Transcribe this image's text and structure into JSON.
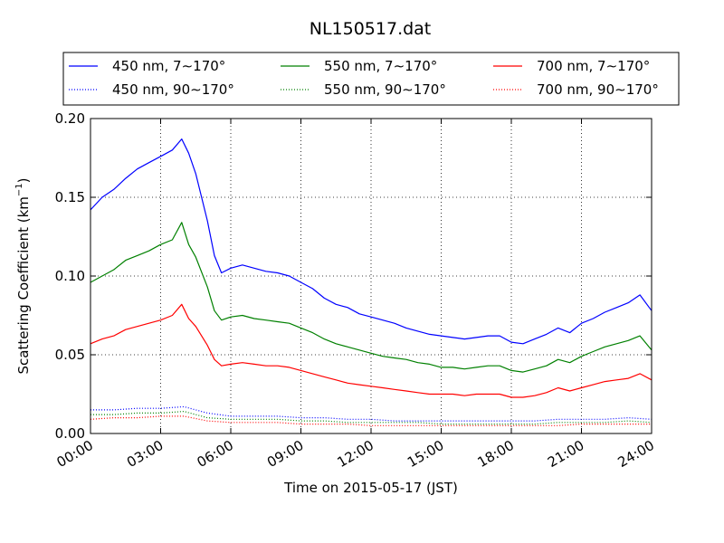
{
  "chart_data": {
    "type": "line",
    "title": "NL150517.dat",
    "xlabel": "Time on 2015-05-17 (JST)",
    "ylabel": "Scattering Coefficient (km",
    "ylabel_sup": "−1",
    "ylabel_end": ")",
    "x_unit": "hours",
    "xlim": [
      0,
      24
    ],
    "ylim": [
      0,
      0.2
    ],
    "x_ticks": [
      0,
      3,
      6,
      9,
      12,
      15,
      18,
      21,
      24
    ],
    "x_tick_labels": [
      "00:00",
      "03:00",
      "06:00",
      "09:00",
      "12:00",
      "15:00",
      "18:00",
      "21:00",
      "24:00"
    ],
    "y_ticks": [
      0,
      0.05,
      0.1,
      0.15,
      0.2
    ],
    "y_tick_labels": [
      "0.00",
      "0.05",
      "0.10",
      "0.15",
      "0.20"
    ],
    "grid": true,
    "legend_placement": "top, above plot, 3 columns",
    "series": [
      {
        "name": "450 nm, 7∼170°",
        "color": "#0000ff",
        "style": "solid",
        "x": [
          0,
          0.5,
          1,
          1.5,
          2,
          2.5,
          3,
          3.5,
          3.9,
          4.2,
          4.5,
          5,
          5.3,
          5.6,
          6,
          6.5,
          7,
          7.5,
          8,
          8.5,
          9,
          9.5,
          10,
          10.5,
          11,
          11.5,
          12,
          12.5,
          13,
          13.5,
          14,
          14.5,
          15,
          15.5,
          16,
          16.5,
          17,
          17.5,
          18,
          18.5,
          19,
          19.5,
          20,
          20.5,
          21,
          21.5,
          22,
          22.5,
          23,
          23.5,
          24
        ],
        "y": [
          0.142,
          0.15,
          0.155,
          0.162,
          0.168,
          0.172,
          0.176,
          0.18,
          0.187,
          0.178,
          0.165,
          0.135,
          0.113,
          0.102,
          0.105,
          0.107,
          0.105,
          0.103,
          0.102,
          0.1,
          0.096,
          0.092,
          0.086,
          0.082,
          0.08,
          0.076,
          0.074,
          0.072,
          0.07,
          0.067,
          0.065,
          0.063,
          0.062,
          0.061,
          0.06,
          0.061,
          0.062,
          0.062,
          0.058,
          0.057,
          0.06,
          0.063,
          0.067,
          0.064,
          0.07,
          0.073,
          0.077,
          0.08,
          0.083,
          0.088,
          0.078
        ]
      },
      {
        "name": "550 nm, 7∼170°",
        "color": "#008000",
        "style": "solid",
        "x": [
          0,
          0.5,
          1,
          1.5,
          2,
          2.5,
          3,
          3.5,
          3.9,
          4.2,
          4.5,
          5,
          5.3,
          5.6,
          6,
          6.5,
          7,
          7.5,
          8,
          8.5,
          9,
          9.5,
          10,
          10.5,
          11,
          11.5,
          12,
          12.5,
          13,
          13.5,
          14,
          14.5,
          15,
          15.5,
          16,
          16.5,
          17,
          17.5,
          18,
          18.5,
          19,
          19.5,
          20,
          20.5,
          21,
          21.5,
          22,
          22.5,
          23,
          23.5,
          24
        ],
        "y": [
          0.096,
          0.1,
          0.104,
          0.11,
          0.113,
          0.116,
          0.12,
          0.123,
          0.134,
          0.12,
          0.112,
          0.093,
          0.078,
          0.072,
          0.074,
          0.075,
          0.073,
          0.072,
          0.071,
          0.07,
          0.067,
          0.064,
          0.06,
          0.057,
          0.055,
          0.053,
          0.051,
          0.049,
          0.048,
          0.047,
          0.045,
          0.044,
          0.042,
          0.042,
          0.041,
          0.042,
          0.043,
          0.043,
          0.04,
          0.039,
          0.041,
          0.043,
          0.047,
          0.045,
          0.049,
          0.052,
          0.055,
          0.057,
          0.059,
          0.062,
          0.053
        ]
      },
      {
        "name": "700 nm, 7∼170°",
        "color": "#ff0000",
        "style": "solid",
        "x": [
          0,
          0.5,
          1,
          1.5,
          2,
          2.5,
          3,
          3.5,
          3.9,
          4.2,
          4.5,
          5,
          5.3,
          5.6,
          6,
          6.5,
          7,
          7.5,
          8,
          8.5,
          9,
          9.5,
          10,
          10.5,
          11,
          11.5,
          12,
          12.5,
          13,
          13.5,
          14,
          14.5,
          15,
          15.5,
          16,
          16.5,
          17,
          17.5,
          18,
          18.5,
          19,
          19.5,
          20,
          20.5,
          21,
          21.5,
          22,
          22.5,
          23,
          23.5,
          24
        ],
        "y": [
          0.057,
          0.06,
          0.062,
          0.066,
          0.068,
          0.07,
          0.072,
          0.075,
          0.082,
          0.073,
          0.068,
          0.056,
          0.047,
          0.043,
          0.044,
          0.045,
          0.044,
          0.043,
          0.043,
          0.042,
          0.04,
          0.038,
          0.036,
          0.034,
          0.032,
          0.031,
          0.03,
          0.029,
          0.028,
          0.027,
          0.026,
          0.025,
          0.025,
          0.025,
          0.024,
          0.025,
          0.025,
          0.025,
          0.023,
          0.023,
          0.024,
          0.026,
          0.029,
          0.027,
          0.029,
          0.031,
          0.033,
          0.034,
          0.035,
          0.038,
          0.034
        ]
      },
      {
        "name": "450 nm, 90∼170°",
        "color": "#0000ff",
        "style": "dotted",
        "x": [
          0,
          1,
          2,
          3,
          4,
          5,
          6,
          7,
          8,
          9,
          10,
          11,
          12,
          13,
          14,
          15,
          16,
          17,
          18,
          19,
          20,
          21,
          22,
          23,
          24
        ],
        "y": [
          0.015,
          0.015,
          0.016,
          0.016,
          0.017,
          0.013,
          0.011,
          0.011,
          0.011,
          0.01,
          0.01,
          0.009,
          0.009,
          0.008,
          0.008,
          0.008,
          0.008,
          0.008,
          0.008,
          0.008,
          0.009,
          0.009,
          0.009,
          0.01,
          0.009
        ]
      },
      {
        "name": "550 nm, 90∼170°",
        "color": "#008000",
        "style": "dotted",
        "x": [
          0,
          1,
          2,
          3,
          4,
          5,
          6,
          7,
          8,
          9,
          10,
          11,
          12,
          13,
          14,
          15,
          16,
          17,
          18,
          19,
          20,
          21,
          22,
          23,
          24
        ],
        "y": [
          0.012,
          0.012,
          0.013,
          0.013,
          0.014,
          0.01,
          0.009,
          0.009,
          0.009,
          0.008,
          0.008,
          0.007,
          0.007,
          0.007,
          0.007,
          0.006,
          0.006,
          0.006,
          0.006,
          0.006,
          0.007,
          0.007,
          0.007,
          0.008,
          0.007
        ]
      },
      {
        "name": "700 nm, 90∼170°",
        "color": "#ff0000",
        "style": "dotted",
        "x": [
          0,
          1,
          2,
          3,
          4,
          5,
          6,
          7,
          8,
          9,
          10,
          11,
          12,
          13,
          14,
          15,
          16,
          17,
          18,
          19,
          20,
          21,
          22,
          23,
          24
        ],
        "y": [
          0.009,
          0.01,
          0.01,
          0.011,
          0.011,
          0.008,
          0.007,
          0.007,
          0.007,
          0.006,
          0.006,
          0.006,
          0.005,
          0.005,
          0.005,
          0.005,
          0.005,
          0.005,
          0.005,
          0.005,
          0.005,
          0.006,
          0.006,
          0.006,
          0.006
        ]
      }
    ]
  }
}
